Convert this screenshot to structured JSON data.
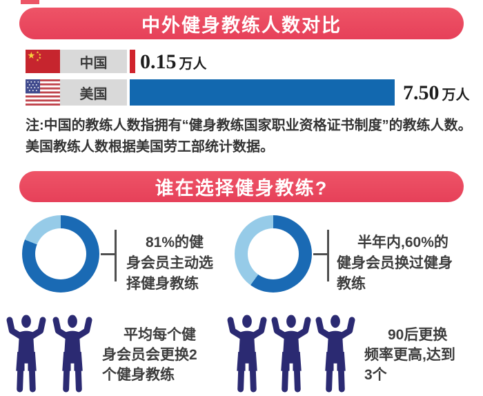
{
  "banners": {
    "top": "中外健身教练人数对比",
    "who": "谁在选择健身教练?"
  },
  "bar_section": {
    "rows": [
      {
        "country": "中国",
        "value_number": "0.15",
        "value_unit": "万人"
      },
      {
        "country": "美国",
        "value_number": "7.50",
        "value_unit": "万人"
      }
    ],
    "note_line1": "注:中国的教练人数指拥有“健身教练国家职业资格证书制度”的教练人数。",
    "note_line2": "美国教练人数根据美国劳工部统计数据。"
  },
  "donut_section": {
    "donuts": [
      {
        "percent": 81,
        "line1": "81%的健",
        "line2": "身会员主动选",
        "line3": "择健身教练"
      },
      {
        "percent": 60,
        "line1": "半年内,60%的",
        "line2": "健身会员换过健身",
        "line3": "教练"
      }
    ]
  },
  "figure_section": {
    "groups": [
      {
        "count": 2,
        "line1": "平均每个健",
        "line2": "身会员会更换2",
        "line3": "个健身教练"
      },
      {
        "count": 3,
        "line1": "90后更换",
        "line2": "频率更高,达到",
        "line3": "3个"
      }
    ]
  },
  "colors": {
    "banner_red": "#e94b5f",
    "china_bar": "#d0242d",
    "usa_bar": "#1268af",
    "donut_dark": "#1a6ab4",
    "donut_light": "#96cbe8",
    "silhouette": "#2b2a72",
    "label_bg": "#d9d9d9"
  },
  "chart_data": [
    {
      "type": "bar",
      "orientation": "horizontal",
      "title": "中外健身教练人数对比",
      "categories": [
        "中国",
        "美国"
      ],
      "values": [
        0.15,
        7.5
      ],
      "unit": "万人",
      "value_labels": [
        "0.15万人",
        "7.50万人"
      ],
      "bar_colors": [
        "#d0242d",
        "#1268af"
      ],
      "xlim": [
        0,
        7.5
      ],
      "note": "注:中国的教练人数指拥有“健身教练国家职业资格证书制度”的教练人数。美国教练人数根据美国劳工部统计数据。"
    },
    {
      "type": "donut",
      "title": "81%的健身会员主动选择健身教练",
      "values": [
        81,
        19
      ],
      "colors": [
        "#1a6ab4",
        "#96cbe8"
      ],
      "start_angle_deg": 0,
      "direction": "clockwise"
    },
    {
      "type": "donut",
      "title": "半年内,60%的健身会员换过健身教练",
      "values": [
        60,
        40
      ],
      "colors": [
        "#1a6ab4",
        "#96cbe8"
      ],
      "start_angle_deg": 0,
      "direction": "clockwise"
    }
  ]
}
